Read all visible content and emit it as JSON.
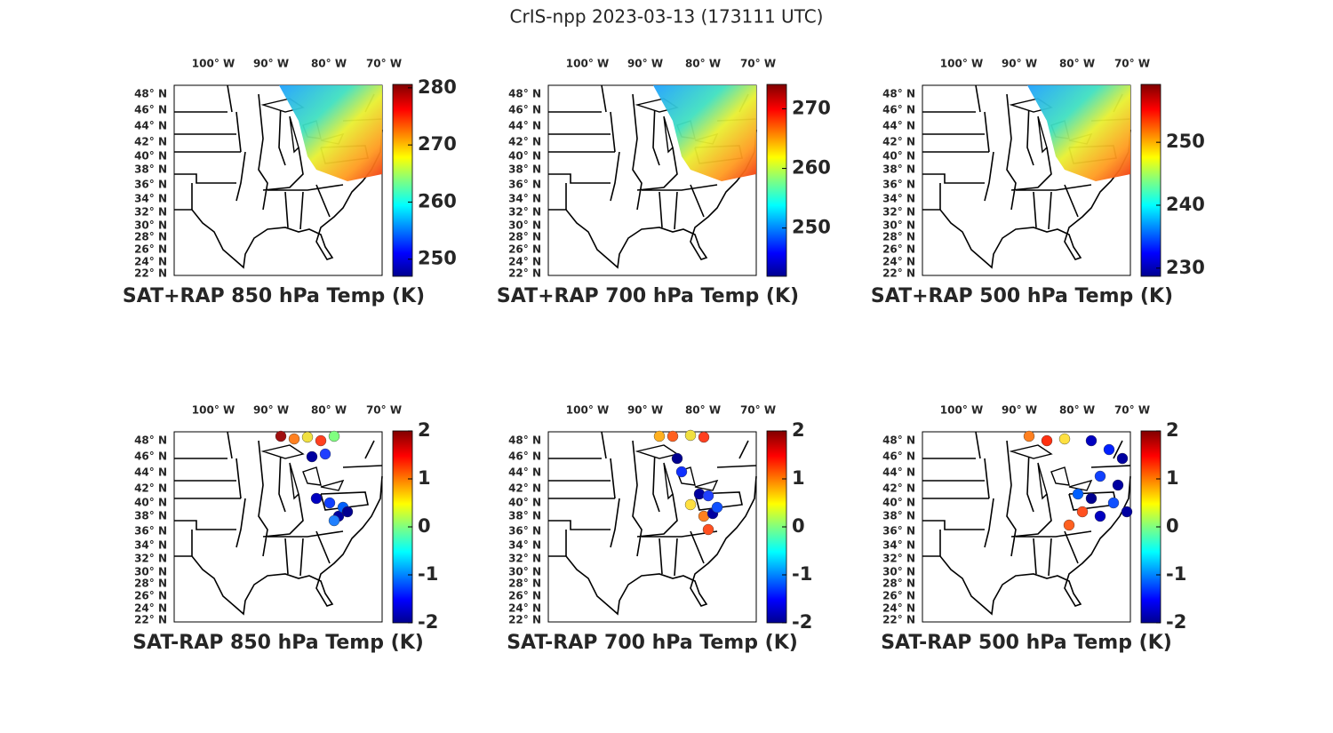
{
  "title": "CrIS-npp 2023-03-13 (173111 UTC)",
  "lon_labels": [
    "100° W",
    "90° W",
    "80° W",
    "70° W"
  ],
  "lat_labels": [
    "48° N",
    "46° N",
    "44° N",
    "42° N",
    "40° N",
    "38° N",
    "36° N",
    "34° N",
    "32° N",
    "30° N",
    "28° N",
    "26° N",
    "24° N",
    "22° N"
  ],
  "panels": [
    {
      "label": "SAT+RAP 850 hPa Temp (K)",
      "clim": [
        247,
        280.6
      ],
      "cticks": [
        250,
        260,
        270,
        280
      ]
    },
    {
      "label": "SAT+RAP 700 hPa Temp (K)",
      "clim": [
        241.9,
        274.1
      ],
      "cticks": [
        250,
        260,
        270
      ]
    },
    {
      "label": "SAT+RAP 500 hPa Temp (K)",
      "clim": [
        228.7,
        259.2
      ],
      "cticks": [
        230,
        240,
        250
      ]
    },
    {
      "label": "SAT-RAP 850 hPa Temp (K)",
      "clim": [
        -2,
        2
      ],
      "cticks": [
        -2,
        -1,
        0,
        1,
        2
      ]
    },
    {
      "label": "SAT-RAP 700 hPa Temp (K)",
      "clim": [
        -2,
        2
      ],
      "cticks": [
        -2,
        -1,
        0,
        1,
        2
      ]
    },
    {
      "label": "SAT-RAP 500 hPa Temp (K)",
      "clim": [
        -2,
        2
      ],
      "cticks": [
        -2,
        -1,
        0,
        1,
        2
      ]
    }
  ]
}
